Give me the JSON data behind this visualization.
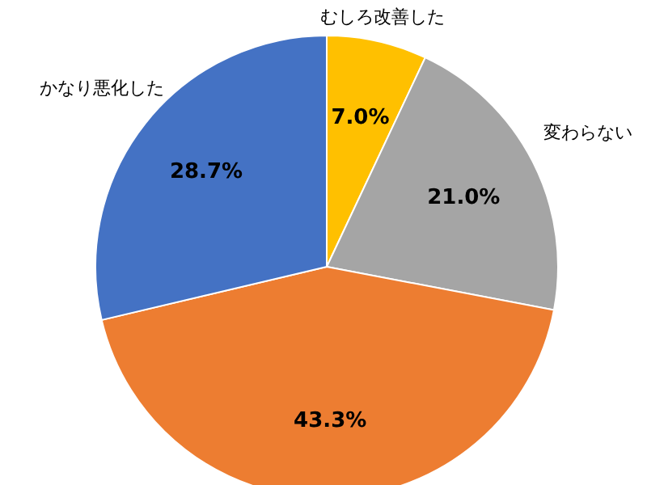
{
  "chart_data": {
    "type": "pie",
    "categories": [
      "むしろ改善した",
      "変わらない",
      null,
      "かなり悪化した"
    ],
    "values": [
      7.0,
      21.0,
      43.3,
      28.7
    ],
    "colors": [
      "#ffc000",
      "#a5a5a5",
      "#ed7d31",
      "#4472c4"
    ],
    "value_labels": [
      "7.0%",
      "21.0%",
      "43.3%",
      "28.7%"
    ]
  }
}
